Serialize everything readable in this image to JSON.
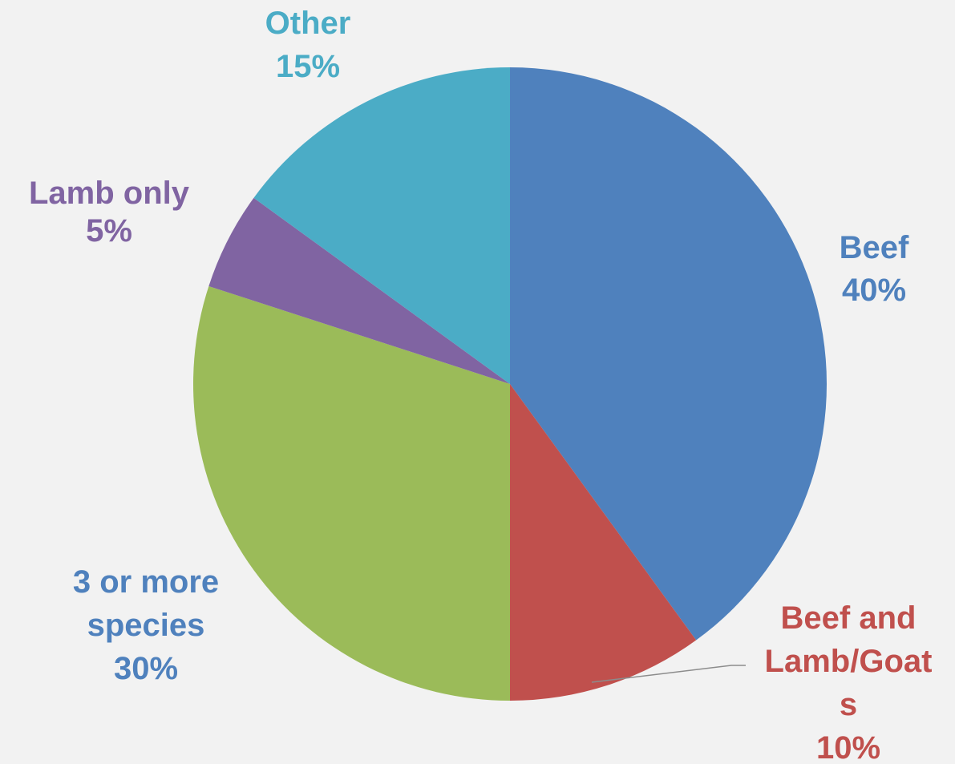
{
  "chart_data": {
    "type": "pie",
    "title": "",
    "slices": [
      {
        "label": "Beef",
        "value": 40,
        "display": "40%",
        "color": "#4f81bd",
        "label_color": "#4f81bd"
      },
      {
        "label": "Beef and Lamb/Goats",
        "label_lines": [
          "Beef and",
          "Lamb/Goat",
          "s"
        ],
        "value": 10,
        "display": "10%",
        "color": "#c0504d",
        "label_color": "#c0504d"
      },
      {
        "label": "3 or more species",
        "label_lines": [
          "3 or more",
          "species"
        ],
        "value": 30,
        "display": "30%",
        "color": "#9bbb59",
        "label_color": "#4f81bd"
      },
      {
        "label": "Lamb only",
        "value": 5,
        "display": "5%",
        "color": "#8064a2",
        "label_color": "#8064a2"
      },
      {
        "label": "Other",
        "value": 15,
        "display": "15%",
        "color": "#4bacc6",
        "label_color": "#4bacc6"
      }
    ],
    "start_angle": "12 o'clock",
    "direction": "clockwise",
    "legend": "none",
    "data_labels": "outside",
    "background": "#f2f2f2"
  }
}
